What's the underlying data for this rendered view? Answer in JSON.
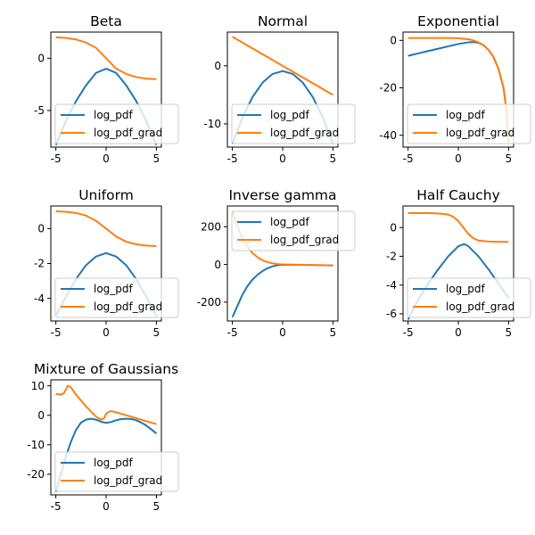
{
  "colors": {
    "log_pdf": "#1f77b4",
    "log_pdf_grad": "#ff7f0e"
  },
  "chart_data": [
    {
      "type": "line",
      "title": "Beta",
      "xlim": [
        -5.5,
        5.5
      ],
      "ylim": [
        -8.5,
        2.5
      ],
      "xticks": [
        -5,
        0,
        5
      ],
      "yticks": [
        -5,
        0
      ],
      "legend": "lower-left",
      "series": [
        {
          "name": "log_pdf",
          "x": [
            -5,
            -4,
            -3,
            -2,
            -1,
            0,
            1,
            2,
            3,
            4,
            5
          ],
          "y": [
            -8.3,
            -6.0,
            -4.1,
            -2.6,
            -1.4,
            -1.0,
            -1.4,
            -2.6,
            -4.1,
            -6.0,
            -8.3
          ]
        },
        {
          "name": "log_pdf_grad",
          "x": [
            -5,
            -4,
            -3,
            -2,
            -1,
            0,
            1,
            2,
            3,
            4,
            5
          ],
          "y": [
            2.0,
            1.95,
            1.8,
            1.5,
            1.0,
            0.0,
            -1.0,
            -1.5,
            -1.8,
            -1.95,
            -2.0
          ]
        }
      ]
    },
    {
      "type": "line",
      "title": "Normal",
      "xlim": [
        -5.5,
        5.5
      ],
      "ylim": [
        -14,
        5.8
      ],
      "xticks": [
        -5,
        0,
        5
      ],
      "yticks": [
        -10,
        0
      ],
      "legend": "lower-left",
      "series": [
        {
          "name": "log_pdf",
          "x": [
            -5,
            -4,
            -3,
            -2,
            -1,
            0,
            1,
            2,
            3,
            4,
            5
          ],
          "y": [
            -13.4,
            -8.9,
            -5.4,
            -2.9,
            -1.4,
            -0.9,
            -1.4,
            -2.9,
            -5.4,
            -8.9,
            -13.4
          ]
        },
        {
          "name": "log_pdf_grad",
          "x": [
            -5,
            5
          ],
          "y": [
            5,
            -5
          ]
        }
      ]
    },
    {
      "type": "line",
      "title": "Exponential",
      "xlim": [
        -5.5,
        5.5
      ],
      "ylim": [
        -45,
        3.5
      ],
      "xticks": [
        -5,
        0,
        5
      ],
      "yticks": [
        -40,
        -20,
        0
      ],
      "legend": "lower-left",
      "series": [
        {
          "name": "log_pdf",
          "x": [
            -5,
            -4,
            -3,
            -2,
            -1,
            0,
            1,
            1.5,
            2,
            2.5,
            3,
            3.5,
            4,
            4.5,
            4.8,
            5
          ],
          "y": [
            -6.5,
            -5.5,
            -4.5,
            -3.5,
            -2.5,
            -1.5,
            -0.8,
            -0.7,
            -1.0,
            -2.0,
            -4.0,
            -7.0,
            -12.0,
            -20.0,
            -30.0,
            -43.0
          ]
        },
        {
          "name": "log_pdf_grad",
          "x": [
            -5,
            -4,
            -3,
            -2,
            -1,
            0,
            1,
            1.5,
            2,
            2.5,
            3,
            3.5,
            4,
            4.5,
            4.8,
            5
          ],
          "y": [
            1.0,
            1.0,
            1.0,
            1.0,
            1.0,
            0.9,
            0.5,
            0.0,
            -0.8,
            -2.0,
            -4.0,
            -7.0,
            -12.0,
            -20.0,
            -30.0,
            -43.0
          ]
        }
      ]
    },
    {
      "type": "line",
      "title": "Uniform",
      "xlim": [
        -5.5,
        5.5
      ],
      "ylim": [
        -5.3,
        1.3
      ],
      "xticks": [
        -5,
        0,
        5
      ],
      "yticks": [
        -4,
        -2,
        0
      ],
      "legend": "lower-left",
      "series": [
        {
          "name": "log_pdf",
          "x": [
            -5,
            -4,
            -3,
            -2,
            -1,
            0,
            1,
            2,
            3,
            4,
            5
          ],
          "y": [
            -5.0,
            -3.9,
            -2.9,
            -2.1,
            -1.6,
            -1.4,
            -1.6,
            -2.1,
            -2.9,
            -3.9,
            -5.0
          ]
        },
        {
          "name": "log_pdf_grad",
          "x": [
            -5,
            -4,
            -3,
            -2,
            -1,
            0,
            1,
            2,
            3,
            4,
            5
          ],
          "y": [
            1.0,
            0.97,
            0.9,
            0.75,
            0.45,
            0.0,
            -0.45,
            -0.75,
            -0.9,
            -0.97,
            -1.0
          ]
        }
      ]
    },
    {
      "type": "line",
      "title": "Inverse gamma",
      "xlim": [
        -5.5,
        5.5
      ],
      "ylim": [
        -300,
        310
      ],
      "xticks": [
        -5,
        0,
        5
      ],
      "yticks": [
        -200,
        0,
        200
      ],
      "legend": "upper-left",
      "series": [
        {
          "name": "log_pdf",
          "x": [
            -5,
            -4.5,
            -4,
            -3.5,
            -3,
            -2.5,
            -2,
            -1.5,
            -1,
            -0.5,
            0,
            1,
            2,
            3,
            4,
            5
          ],
          "y": [
            -280,
            -220,
            -160,
            -115,
            -80,
            -55,
            -35,
            -20,
            -10,
            -4,
            -2,
            -2,
            -2.5,
            -3.5,
            -4.5,
            -5.5
          ]
        },
        {
          "name": "log_pdf_grad",
          "x": [
            -5,
            -4.5,
            -4,
            -3.5,
            -3,
            -2.5,
            -2,
            -1.5,
            -1,
            -0.5,
            0,
            1,
            2,
            3,
            4,
            5
          ],
          "y": [
            280,
            200,
            140,
            95,
            60,
            38,
            22,
            12,
            6,
            2,
            0,
            -1,
            -2,
            -3,
            -4,
            -5
          ]
        }
      ]
    },
    {
      "type": "line",
      "title": "Half Cauchy",
      "xlim": [
        -5.5,
        5.5
      ],
      "ylim": [
        -6.5,
        1.5
      ],
      "xticks": [
        -5,
        0,
        5
      ],
      "yticks": [
        -6,
        -4,
        -2,
        0
      ],
      "legend": "lower-left",
      "series": [
        {
          "name": "log_pdf",
          "x": [
            -5,
            -4,
            -3,
            -2,
            -1,
            0,
            0.6,
            1,
            2,
            3,
            4,
            5
          ],
          "y": [
            -6.4,
            -5.0,
            -3.9,
            -2.9,
            -2.0,
            -1.3,
            -1.15,
            -1.3,
            -2.0,
            -2.9,
            -3.9,
            -4.9
          ]
        },
        {
          "name": "log_pdf_grad",
          "x": [
            -5,
            -4,
            -3,
            -2,
            -1,
            -0.5,
            0,
            0.5,
            1,
            1.5,
            2,
            3,
            4,
            5
          ],
          "y": [
            1.0,
            1.0,
            1.0,
            0.98,
            0.9,
            0.75,
            0.45,
            0.0,
            -0.45,
            -0.75,
            -0.9,
            -0.97,
            -0.99,
            -1.0
          ]
        }
      ]
    },
    {
      "type": "line",
      "title": "Mixture of Gaussians",
      "xlim": [
        -5.5,
        5.5
      ],
      "ylim": [
        -27,
        12
      ],
      "xticks": [
        -5,
        0,
        5
      ],
      "yticks": [
        -20,
        -10,
        0,
        10
      ],
      "legend": "lower-left",
      "series": [
        {
          "name": "log_pdf",
          "x": [
            -5,
            -4.5,
            -4,
            -3.5,
            -3,
            -2.5,
            -2,
            -1.5,
            -1,
            -0.5,
            0,
            0.5,
            1,
            1.5,
            2,
            2.5,
            3,
            3.5,
            4,
            4.5,
            5
          ],
          "y": [
            -26,
            -20,
            -14,
            -9,
            -5,
            -2.5,
            -1.5,
            -1.2,
            -1.5,
            -2.2,
            -2.6,
            -2.3,
            -1.7,
            -1.3,
            -1.2,
            -1.3,
            -1.7,
            -2.5,
            -3.5,
            -4.8,
            -6.2
          ]
        },
        {
          "name": "log_pdf_grad",
          "x": [
            -5,
            -4.5,
            -4.2,
            -3.8,
            -3.5,
            -3,
            -2,
            -1,
            -0.5,
            -0.2,
            0,
            0.3,
            0.5,
            1,
            2,
            3,
            4,
            5
          ],
          "y": [
            7.2,
            7.0,
            7.5,
            10.0,
            9.5,
            7.0,
            3.0,
            -0.5,
            -1.5,
            -1.0,
            0.5,
            1.2,
            1.4,
            1.0,
            0.0,
            -1.0,
            -2.0,
            -3.0
          ]
        }
      ]
    }
  ]
}
